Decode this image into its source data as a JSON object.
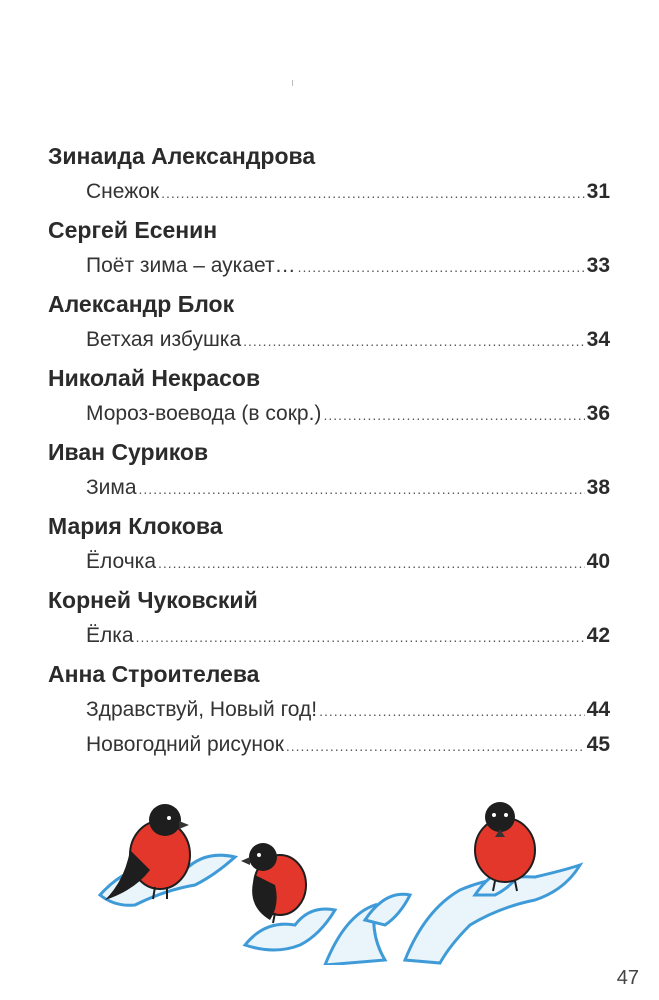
{
  "toc": [
    {
      "author": "Зинаида Александрова",
      "entries": [
        {
          "title": "Снежок",
          "page": "31"
        }
      ]
    },
    {
      "author": "Сергей Есенин",
      "entries": [
        {
          "title": "Поёт зима – аукает…",
          "page": "33"
        }
      ]
    },
    {
      "author": "Александр Блок",
      "entries": [
        {
          "title": "Ветхая избушка",
          "page": "34"
        }
      ]
    },
    {
      "author": "Николай Некрасов",
      "entries": [
        {
          "title": "Мороз-воевода (в сокр.)",
          "page": "36"
        }
      ]
    },
    {
      "author": "Иван Суриков",
      "entries": [
        {
          "title": "Зима",
          "page": "38"
        }
      ]
    },
    {
      "author": "Мария Клокова",
      "entries": [
        {
          "title": "Ёлочка",
          "page": "40"
        }
      ]
    },
    {
      "author": "Корней Чуковский",
      "entries": [
        {
          "title": "Ёлка",
          "page": "42"
        }
      ]
    },
    {
      "author": "Анна Строителева",
      "entries": [
        {
          "title": "Здравствуй, Новый год!",
          "page": "44"
        },
        {
          "title": "Новогодний рисунок",
          "page": "45"
        }
      ]
    }
  ],
  "illustration": {
    "icon": "bullfinches-on-snowy-branches-illustration"
  },
  "page_number": "47",
  "colors": {
    "bird_red": "#e2372a",
    "snow_blue": "#3f9bd8",
    "bird_black": "#1e1e1e"
  }
}
